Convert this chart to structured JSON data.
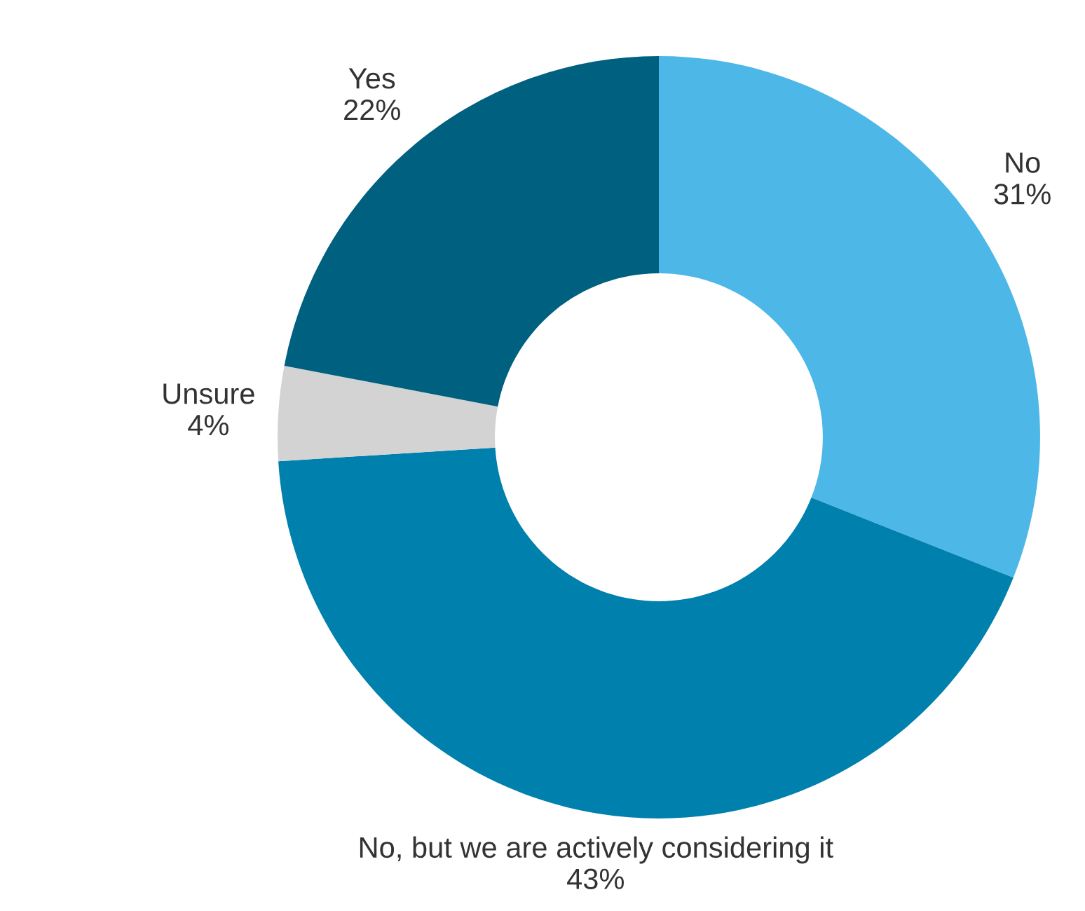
{
  "chart_data": {
    "type": "donut",
    "categories": [
      "No",
      "No, but we are actively considering it",
      "Unsure",
      "Yes"
    ],
    "values": [
      31,
      43,
      4,
      22
    ],
    "colors": [
      "#4db8e8",
      "#0080ad",
      "#d3d3d3",
      "#006080"
    ],
    "value_labels": [
      "31%",
      "43%",
      "4%",
      "22%"
    ],
    "legend": false
  }
}
